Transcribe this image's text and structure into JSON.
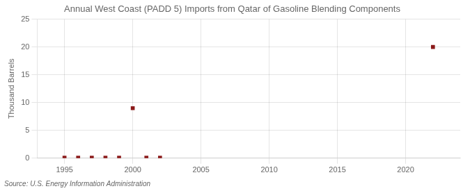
{
  "chart_data": {
    "type": "scatter",
    "title": "Annual West Coast (PADD 5) Imports from Qatar of Gasoline Blending Components",
    "ylabel": "Thousand Barrels",
    "annotations": [
      "Source: U.S. Energy Information Administration"
    ],
    "x": [
      1995,
      1996,
      1997,
      1998,
      1999,
      2001,
      2002,
      2000,
      2022
    ],
    "values": [
      0.08,
      0.08,
      0.08,
      0.08,
      0.08,
      0.08,
      0.08,
      9,
      20
    ],
    "color": "#8b1a1a",
    "marker": "square",
    "xlim": [
      1993,
      2024
    ],
    "xticks": [
      1995,
      2000,
      2005,
      2010,
      2015,
      2020
    ],
    "ylim": [
      0,
      25
    ],
    "yticks": [
      0,
      5,
      10,
      15,
      20,
      25
    ],
    "grid": true
  }
}
